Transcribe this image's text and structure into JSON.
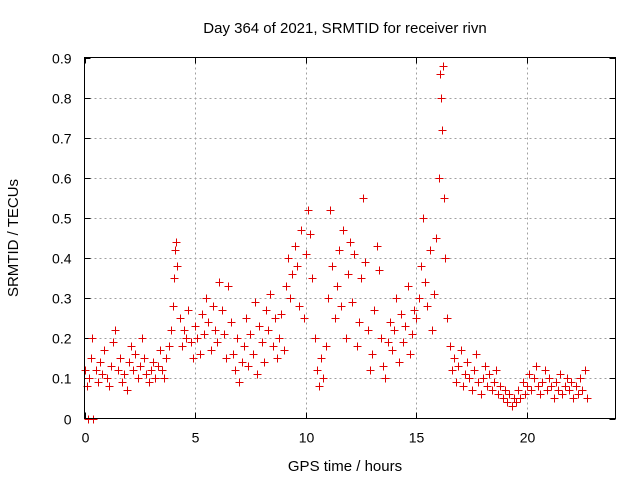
{
  "chart_data": {
    "type": "scatter",
    "title": "Day 364 of 2021, SRMTID for receiver rivn",
    "xlabel": "GPS time / hours",
    "ylabel": "SRMTID / TECUs",
    "xlim": [
      0,
      24
    ],
    "ylim": [
      0,
      0.9
    ],
    "xticks": [
      0,
      5,
      10,
      15,
      20
    ],
    "xtick_labels": [
      "0",
      "5",
      "10",
      "15",
      "20"
    ],
    "yticks": [
      0,
      0.1,
      0.2,
      0.3,
      0.4,
      0.5,
      0.6,
      0.7,
      0.8,
      0.9
    ],
    "ytick_labels": [
      "0",
      "0.1",
      "0.2",
      "0.3",
      "0.4",
      "0.5",
      "0.6",
      "0.7",
      "0.8",
      "0.9"
    ],
    "grid": true,
    "marker": "+",
    "color": "#e00000",
    "series": [
      {
        "name": "SRMTID",
        "points": [
          [
            0.0,
            0.12
          ],
          [
            0.1,
            0.08
          ],
          [
            0.15,
            0.0
          ],
          [
            0.2,
            0.1
          ],
          [
            0.3,
            0.15
          ],
          [
            0.35,
            0.2
          ],
          [
            0.4,
            0.0
          ],
          [
            0.5,
            0.12
          ],
          [
            0.6,
            0.09
          ],
          [
            0.7,
            0.14
          ],
          [
            0.8,
            0.11
          ],
          [
            0.9,
            0.17
          ],
          [
            1.0,
            0.1
          ],
          [
            1.1,
            0.08
          ],
          [
            1.2,
            0.13
          ],
          [
            1.3,
            0.19
          ],
          [
            1.4,
            0.22
          ],
          [
            1.5,
            0.12
          ],
          [
            1.6,
            0.15
          ],
          [
            1.7,
            0.09
          ],
          [
            1.8,
            0.11
          ],
          [
            1.9,
            0.07
          ],
          [
            2.0,
            0.14
          ],
          [
            2.1,
            0.18
          ],
          [
            2.2,
            0.12
          ],
          [
            2.3,
            0.16
          ],
          [
            2.4,
            0.1
          ],
          [
            2.5,
            0.13
          ],
          [
            2.6,
            0.2
          ],
          [
            2.7,
            0.15
          ],
          [
            2.8,
            0.11
          ],
          [
            2.9,
            0.09
          ],
          [
            3.0,
            0.12
          ],
          [
            3.1,
            0.14
          ],
          [
            3.2,
            0.1
          ],
          [
            3.3,
            0.13
          ],
          [
            3.4,
            0.17
          ],
          [
            3.5,
            0.12
          ],
          [
            3.6,
            0.1
          ],
          [
            3.7,
            0.15
          ],
          [
            3.8,
            0.18
          ],
          [
            3.9,
            0.22
          ],
          [
            4.0,
            0.28
          ],
          [
            4.05,
            0.35
          ],
          [
            4.1,
            0.42
          ],
          [
            4.15,
            0.44
          ],
          [
            4.2,
            0.38
          ],
          [
            4.3,
            0.25
          ],
          [
            4.4,
            0.18
          ],
          [
            4.5,
            0.22
          ],
          [
            4.6,
            0.2
          ],
          [
            4.7,
            0.27
          ],
          [
            4.8,
            0.19
          ],
          [
            4.9,
            0.15
          ],
          [
            5.0,
            0.23
          ],
          [
            5.1,
            0.2
          ],
          [
            5.2,
            0.16
          ],
          [
            5.3,
            0.26
          ],
          [
            5.4,
            0.21
          ],
          [
            5.5,
            0.3
          ],
          [
            5.6,
            0.24
          ],
          [
            5.7,
            0.17
          ],
          [
            5.8,
            0.28
          ],
          [
            5.9,
            0.22
          ],
          [
            6.0,
            0.19
          ],
          [
            6.1,
            0.34
          ],
          [
            6.2,
            0.27
          ],
          [
            6.3,
            0.21
          ],
          [
            6.4,
            0.15
          ],
          [
            6.5,
            0.33
          ],
          [
            6.6,
            0.24
          ],
          [
            6.7,
            0.16
          ],
          [
            6.8,
            0.12
          ],
          [
            6.9,
            0.2
          ],
          [
            7.0,
            0.09
          ],
          [
            7.1,
            0.14
          ],
          [
            7.2,
            0.18
          ],
          [
            7.3,
            0.25
          ],
          [
            7.4,
            0.13
          ],
          [
            7.5,
            0.21
          ],
          [
            7.6,
            0.16
          ],
          [
            7.7,
            0.29
          ],
          [
            7.8,
            0.11
          ],
          [
            7.9,
            0.23
          ],
          [
            8.0,
            0.19
          ],
          [
            8.1,
            0.14
          ],
          [
            8.2,
            0.27
          ],
          [
            8.3,
            0.22
          ],
          [
            8.4,
            0.31
          ],
          [
            8.5,
            0.18
          ],
          [
            8.6,
            0.25
          ],
          [
            8.7,
            0.15
          ],
          [
            8.8,
            0.2
          ],
          [
            8.9,
            0.26
          ],
          [
            9.0,
            0.17
          ],
          [
            9.1,
            0.33
          ],
          [
            9.2,
            0.4
          ],
          [
            9.3,
            0.3
          ],
          [
            9.4,
            0.36
          ],
          [
            9.5,
            0.43
          ],
          [
            9.6,
            0.38
          ],
          [
            9.7,
            0.28
          ],
          [
            9.8,
            0.47
          ],
          [
            9.9,
            0.25
          ],
          [
            10.0,
            0.41
          ],
          [
            10.1,
            0.52
          ],
          [
            10.2,
            0.46
          ],
          [
            10.3,
            0.35
          ],
          [
            10.4,
            0.2
          ],
          [
            10.5,
            0.12
          ],
          [
            10.6,
            0.08
          ],
          [
            10.7,
            0.15
          ],
          [
            10.8,
            0.1
          ],
          [
            10.9,
            0.18
          ],
          [
            11.0,
            0.3
          ],
          [
            11.1,
            0.52
          ],
          [
            11.2,
            0.38
          ],
          [
            11.3,
            0.25
          ],
          [
            11.4,
            0.33
          ],
          [
            11.5,
            0.42
          ],
          [
            11.6,
            0.28
          ],
          [
            11.7,
            0.47
          ],
          [
            11.8,
            0.2
          ],
          [
            11.9,
            0.36
          ],
          [
            12.0,
            0.44
          ],
          [
            12.1,
            0.29
          ],
          [
            12.2,
            0.41
          ],
          [
            12.3,
            0.18
          ],
          [
            12.4,
            0.24
          ],
          [
            12.5,
            0.35
          ],
          [
            12.6,
            0.55
          ],
          [
            12.7,
            0.39
          ],
          [
            12.8,
            0.22
          ],
          [
            12.9,
            0.12
          ],
          [
            13.0,
            0.16
          ],
          [
            13.1,
            0.27
          ],
          [
            13.2,
            0.43
          ],
          [
            13.3,
            0.37
          ],
          [
            13.4,
            0.2
          ],
          [
            13.5,
            0.13
          ],
          [
            13.6,
            0.1
          ],
          [
            13.7,
            0.19
          ],
          [
            13.8,
            0.24
          ],
          [
            13.9,
            0.17
          ],
          [
            14.0,
            0.22
          ],
          [
            14.1,
            0.3
          ],
          [
            14.2,
            0.14
          ],
          [
            14.3,
            0.26
          ],
          [
            14.4,
            0.19
          ],
          [
            14.5,
            0.23
          ],
          [
            14.6,
            0.33
          ],
          [
            14.7,
            0.16
          ],
          [
            14.8,
            0.21
          ],
          [
            14.9,
            0.27
          ],
          [
            15.0,
            0.25
          ],
          [
            15.1,
            0.3
          ],
          [
            15.2,
            0.38
          ],
          [
            15.3,
            0.5
          ],
          [
            15.4,
            0.34
          ],
          [
            15.5,
            0.28
          ],
          [
            15.6,
            0.42
          ],
          [
            15.7,
            0.22
          ],
          [
            15.8,
            0.31
          ],
          [
            15.9,
            0.45
          ],
          [
            16.0,
            0.6
          ],
          [
            16.05,
            0.86
          ],
          [
            16.1,
            0.8
          ],
          [
            16.15,
            0.72
          ],
          [
            16.2,
            0.88
          ],
          [
            16.25,
            0.55
          ],
          [
            16.3,
            0.4
          ],
          [
            16.4,
            0.25
          ],
          [
            16.5,
            0.18
          ],
          [
            16.6,
            0.12
          ],
          [
            16.7,
            0.15
          ],
          [
            16.8,
            0.09
          ],
          [
            16.9,
            0.13
          ],
          [
            17.0,
            0.17
          ],
          [
            17.1,
            0.08
          ],
          [
            17.2,
            0.11
          ],
          [
            17.3,
            0.14
          ],
          [
            17.4,
            0.1
          ],
          [
            17.5,
            0.07
          ],
          [
            17.6,
            0.12
          ],
          [
            17.7,
            0.16
          ],
          [
            17.8,
            0.09
          ],
          [
            17.9,
            0.06
          ],
          [
            18.0,
            0.1
          ],
          [
            18.1,
            0.13
          ],
          [
            18.2,
            0.08
          ],
          [
            18.3,
            0.11
          ],
          [
            18.4,
            0.07
          ],
          [
            18.5,
            0.09
          ],
          [
            18.6,
            0.12
          ],
          [
            18.7,
            0.06
          ],
          [
            18.8,
            0.08
          ],
          [
            18.9,
            0.05
          ],
          [
            19.0,
            0.07
          ],
          [
            19.1,
            0.04
          ],
          [
            19.2,
            0.06
          ],
          [
            19.3,
            0.03
          ],
          [
            19.4,
            0.05
          ],
          [
            19.5,
            0.04
          ],
          [
            19.6,
            0.07
          ],
          [
            19.7,
            0.05
          ],
          [
            19.8,
            0.09
          ],
          [
            19.9,
            0.06
          ],
          [
            20.0,
            0.08
          ],
          [
            20.1,
            0.11
          ],
          [
            20.2,
            0.07
          ],
          [
            20.3,
            0.1
          ],
          [
            20.4,
            0.13
          ],
          [
            20.5,
            0.08
          ],
          [
            20.6,
            0.06
          ],
          [
            20.7,
            0.09
          ],
          [
            20.8,
            0.12
          ],
          [
            20.9,
            0.07
          ],
          [
            21.0,
            0.1
          ],
          [
            21.1,
            0.08
          ],
          [
            21.2,
            0.05
          ],
          [
            21.3,
            0.09
          ],
          [
            21.4,
            0.07
          ],
          [
            21.5,
            0.11
          ],
          [
            21.6,
            0.06
          ],
          [
            21.7,
            0.08
          ],
          [
            21.8,
            0.1
          ],
          [
            21.9,
            0.07
          ],
          [
            22.0,
            0.09
          ],
          [
            22.1,
            0.05
          ],
          [
            22.2,
            0.08
          ],
          [
            22.3,
            0.06
          ],
          [
            22.4,
            0.1
          ],
          [
            22.5,
            0.07
          ],
          [
            22.6,
            0.12
          ],
          [
            22.7,
            0.05
          ]
        ]
      }
    ]
  }
}
